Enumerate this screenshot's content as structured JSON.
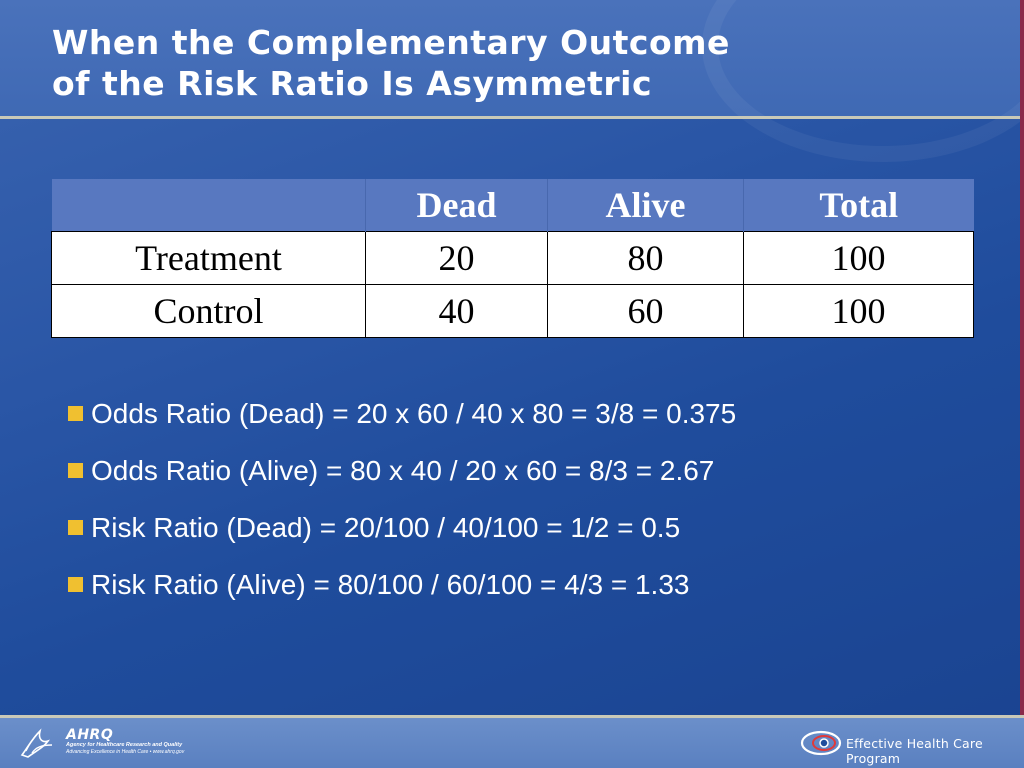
{
  "slide": {
    "title_line1": "When the Complementary Outcome",
    "title_line2": "of the Risk Ratio Is Asymmetric"
  },
  "table": {
    "headers": [
      "",
      "Dead",
      "Alive",
      "Total"
    ],
    "rows": [
      [
        "Treatment",
        "20",
        "80",
        "100"
      ],
      [
        "Control",
        "40",
        "60",
        "100"
      ]
    ]
  },
  "bullets": [
    "Odds Ratio (Dead) = 20 x 60 / 40 x 80 = 3/8 = 0.375",
    "Odds Ratio (Alive) = 80 x 40 / 20 x 60 = 8/3 = 2.67",
    "Risk Ratio (Dead) = 20/100 / 40/100 = 1/2 = 0.5",
    "Risk Ratio (Alive) = 80/100 / 60/100 = 4/3 = 1.33"
  ],
  "footer": {
    "ahrq_logo": "AHRQ",
    "ahrq_line1": "Agency for Healthcare Research and Quality",
    "ahrq_line2": "Advancing Excellence in Health Care • www.ahrq.gov",
    "program": "Effective Health Care Program",
    "left_icon": "hhs-eagle-icon",
    "right_icon": "ehc-swirl-icon"
  },
  "colors": {
    "background": "#2a56a6",
    "header": "#4470b8",
    "table_header": "#5878c0",
    "bullet": "#f0c030",
    "accent_edge": "#8a2a4a"
  }
}
